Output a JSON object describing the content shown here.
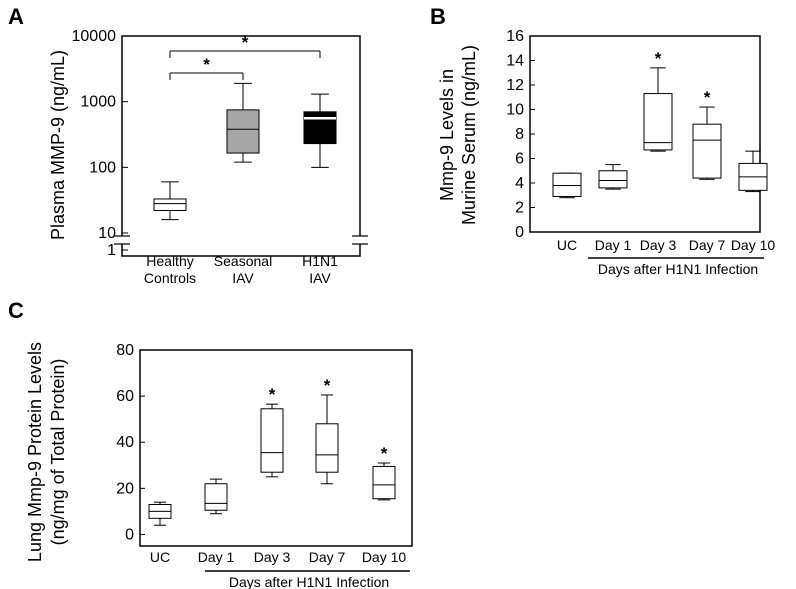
{
  "chart_data": [
    {
      "panel": "A",
      "type": "box",
      "ylabel": "Plasma MMP-9 (ng/mL)",
      "yscale": "log",
      "ylim": [
        1,
        10000
      ],
      "yticks": [
        "1",
        "10",
        "100",
        "1000",
        "10000"
      ],
      "categories": [
        "Healthy\nControls",
        "Seasonal\nIAV",
        "H1N1\nIAV"
      ],
      "boxes": [
        {
          "whisker_low": 16,
          "q1": 22,
          "median": 28,
          "q3": 33,
          "whisker_high": 60,
          "fill": "#ffffff"
        },
        {
          "whisker_low": 120,
          "q1": 165,
          "median": 380,
          "q3": 750,
          "whisker_high": 1900,
          "fill": "#a6a6a6"
        },
        {
          "whisker_low": 100,
          "q1": 230,
          "median": 560,
          "q3": 700,
          "whisker_high": 1300,
          "fill": "#000000"
        }
      ],
      "significance": [
        {
          "from": 0,
          "to": 1,
          "label": "*"
        },
        {
          "from": 0,
          "to": 2,
          "label": "*"
        }
      ]
    },
    {
      "panel": "B",
      "type": "box",
      "ylabel": "Mmp-9 Levels in\nMurine Serum (ng/mL)",
      "ylim": [
        0,
        16
      ],
      "yticks": [
        "0",
        "2",
        "4",
        "6",
        "8",
        "10",
        "12",
        "14",
        "16"
      ],
      "categories": [
        "UC",
        "Day 1",
        "Day 3",
        "Day 7",
        "Day 10"
      ],
      "group_label": "Days after H1N1 Infection",
      "boxes": [
        {
          "whisker_low": 2.8,
          "q1": 2.9,
          "median": 3.8,
          "q3": 4.8,
          "whisker_high": 4.8
        },
        {
          "whisker_low": 3.5,
          "q1": 3.6,
          "median": 4.2,
          "q3": 5.0,
          "whisker_high": 5.5
        },
        {
          "whisker_low": 6.6,
          "q1": 6.7,
          "median": 7.3,
          "q3": 11.3,
          "whisker_high": 13.4
        },
        {
          "whisker_low": 4.3,
          "q1": 4.4,
          "median": 7.5,
          "q3": 8.8,
          "whisker_high": 10.2
        },
        {
          "whisker_low": 3.3,
          "q1": 3.4,
          "median": 4.5,
          "q3": 5.6,
          "whisker_high": 6.6
        }
      ],
      "stars": [
        false,
        false,
        true,
        true,
        false
      ]
    },
    {
      "panel": "C",
      "type": "box",
      "ylabel": "Lung Mmp-9 Protein Levels\n(ng/mg of Total Protein)",
      "ylim": [
        -5,
        80
      ],
      "yticks": [
        "0",
        "20",
        "40",
        "60",
        "80"
      ],
      "categories": [
        "UC",
        "Day 1",
        "Day 3",
        "Day 7",
        "Day 10"
      ],
      "group_label": "Days after H1N1 Infection",
      "boxes": [
        {
          "whisker_low": 4,
          "q1": 7,
          "median": 10,
          "q3": 13,
          "whisker_high": 14
        },
        {
          "whisker_low": 9,
          "q1": 10.5,
          "median": 13.5,
          "q3": 22,
          "whisker_high": 24
        },
        {
          "whisker_low": 25,
          "q1": 27,
          "median": 35.5,
          "q3": 54.5,
          "whisker_high": 56.5
        },
        {
          "whisker_low": 22,
          "q1": 27,
          "median": 34.5,
          "q3": 48,
          "whisker_high": 60.5
        },
        {
          "whisker_low": 15,
          "q1": 15.5,
          "median": 21.5,
          "q3": 29.5,
          "whisker_high": 31
        }
      ],
      "stars": [
        false,
        false,
        true,
        true,
        true
      ]
    }
  ]
}
